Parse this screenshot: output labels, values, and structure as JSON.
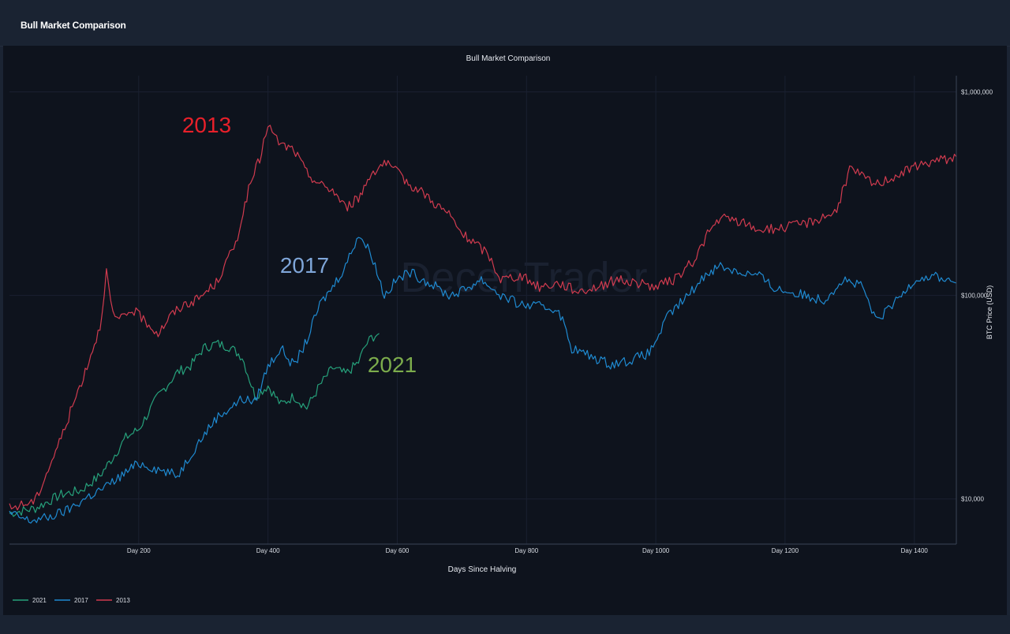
{
  "panel": {
    "title": "Bull Market Comparison"
  },
  "watermark": "DecenTrader",
  "colors": {
    "s2021": "#26a17b",
    "s2017": "#1f8ad1",
    "s2013": "#d13b4f",
    "annot2013": "#e8202a",
    "annot2017": "#7fa6d9",
    "annot2021": "#7cac4c"
  },
  "chart_data": {
    "type": "line",
    "title": "Bull Market Comparison",
    "xlabel": "Days Since Halving",
    "ylabel": "BTC Price (USD)",
    "yscale": "log",
    "xlim": [
      0,
      1465
    ],
    "ylim": [
      6000,
      1200000
    ],
    "x_ticks": [
      200,
      400,
      600,
      800,
      1000,
      1200,
      1400
    ],
    "x_tick_labels": [
      "Day 200",
      "Day 400",
      "Day 600",
      "Day 800",
      "Day 1000",
      "Day 1200",
      "Day 1400"
    ],
    "y_ticks": [
      10000,
      100000,
      1000000
    ],
    "y_tick_labels": [
      "$10,000",
      "$100,000",
      "$1,000,000"
    ],
    "legend_position": "bottom-left",
    "annotations": [
      {
        "text": "2013",
        "series": "2013"
      },
      {
        "text": "2017",
        "series": "2017"
      },
      {
        "text": "2021",
        "series": "2021"
      }
    ],
    "series": [
      {
        "name": "2021",
        "color": "#26a17b",
        "points": [
          [
            0,
            8500
          ],
          [
            40,
            9000
          ],
          [
            80,
            10500
          ],
          [
            110,
            11000
          ],
          [
            140,
            13000
          ],
          [
            160,
            16000
          ],
          [
            180,
            20000
          ],
          [
            200,
            22000
          ],
          [
            230,
            32000
          ],
          [
            260,
            42000
          ],
          [
            280,
            45000
          ],
          [
            300,
            55000
          ],
          [
            320,
            58000
          ],
          [
            340,
            56000
          ],
          [
            360,
            50000
          ],
          [
            380,
            32000
          ],
          [
            400,
            36000
          ],
          [
            420,
            29000
          ],
          [
            440,
            32000
          ],
          [
            460,
            28000
          ],
          [
            480,
            36000
          ],
          [
            500,
            44000
          ],
          [
            520,
            41000
          ],
          [
            540,
            47000
          ],
          [
            550,
            56000
          ],
          [
            560,
            62000
          ],
          [
            572,
            65000
          ]
        ]
      },
      {
        "name": "2017",
        "color": "#1f8ad1",
        "points": [
          [
            0,
            8500
          ],
          [
            30,
            7800
          ],
          [
            60,
            8100
          ],
          [
            90,
            8800
          ],
          [
            120,
            10200
          ],
          [
            150,
            11500
          ],
          [
            180,
            13500
          ],
          [
            200,
            15000
          ],
          [
            230,
            14000
          ],
          [
            260,
            13000
          ],
          [
            290,
            18500
          ],
          [
            320,
            25000
          ],
          [
            360,
            31000
          ],
          [
            380,
            30000
          ],
          [
            400,
            45000
          ],
          [
            420,
            55000
          ],
          [
            440,
            45000
          ],
          [
            460,
            60000
          ],
          [
            480,
            90000
          ],
          [
            500,
            110000
          ],
          [
            520,
            140000
          ],
          [
            540,
            200000
          ],
          [
            560,
            160000
          ],
          [
            580,
            100000
          ],
          [
            600,
            120000
          ],
          [
            620,
            130000
          ],
          [
            650,
            115000
          ],
          [
            680,
            100000
          ],
          [
            700,
            105000
          ],
          [
            730,
            120000
          ],
          [
            760,
            100000
          ],
          [
            790,
            90000
          ],
          [
            820,
            88000
          ],
          [
            850,
            85000
          ],
          [
            870,
            55000
          ],
          [
            900,
            50000
          ],
          [
            930,
            46000
          ],
          [
            960,
            48000
          ],
          [
            990,
            52000
          ],
          [
            1020,
            80000
          ],
          [
            1050,
            100000
          ],
          [
            1080,
            130000
          ],
          [
            1100,
            140000
          ],
          [
            1130,
            130000
          ],
          [
            1160,
            125000
          ],
          [
            1180,
            110000
          ],
          [
            1200,
            105000
          ],
          [
            1230,
            100000
          ],
          [
            1260,
            95000
          ],
          [
            1290,
            120000
          ],
          [
            1320,
            110000
          ],
          [
            1340,
            75000
          ],
          [
            1360,
            85000
          ],
          [
            1380,
            100000
          ],
          [
            1400,
            120000
          ],
          [
            1430,
            125000
          ],
          [
            1465,
            115000
          ]
        ]
      },
      {
        "name": "2013",
        "color": "#d13b4f",
        "points": [
          [
            0,
            9000
          ],
          [
            40,
            9800
          ],
          [
            60,
            14000
          ],
          [
            80,
            20000
          ],
          [
            100,
            30000
          ],
          [
            120,
            45000
          ],
          [
            140,
            70000
          ],
          [
            150,
            130000
          ],
          [
            160,
            80000
          ],
          [
            170,
            75000
          ],
          [
            190,
            85000
          ],
          [
            210,
            75000
          ],
          [
            230,
            65000
          ],
          [
            250,
            80000
          ],
          [
            270,
            90000
          ],
          [
            290,
            95000
          ],
          [
            320,
            115000
          ],
          [
            350,
            180000
          ],
          [
            370,
            330000
          ],
          [
            390,
            500000
          ],
          [
            400,
            700000
          ],
          [
            410,
            600000
          ],
          [
            420,
            550000
          ],
          [
            440,
            520000
          ],
          [
            460,
            400000
          ],
          [
            480,
            350000
          ],
          [
            500,
            330000
          ],
          [
            520,
            270000
          ],
          [
            540,
            300000
          ],
          [
            560,
            400000
          ],
          [
            580,
            450000
          ],
          [
            600,
            400000
          ],
          [
            620,
            350000
          ],
          [
            640,
            320000
          ],
          [
            660,
            280000
          ],
          [
            680,
            250000
          ],
          [
            700,
            200000
          ],
          [
            720,
            180000
          ],
          [
            740,
            160000
          ],
          [
            760,
            120000
          ],
          [
            790,
            125000
          ],
          [
            820,
            110000
          ],
          [
            850,
            115000
          ],
          [
            880,
            105000
          ],
          [
            910,
            110000
          ],
          [
            940,
            120000
          ],
          [
            970,
            115000
          ],
          [
            1000,
            110000
          ],
          [
            1030,
            120000
          ],
          [
            1060,
            150000
          ],
          [
            1080,
            200000
          ],
          [
            1100,
            240000
          ],
          [
            1130,
            230000
          ],
          [
            1160,
            210000
          ],
          [
            1200,
            215000
          ],
          [
            1240,
            230000
          ],
          [
            1280,
            260000
          ],
          [
            1300,
            420000
          ],
          [
            1340,
            350000
          ],
          [
            1380,
            400000
          ],
          [
            1420,
            450000
          ],
          [
            1465,
            480000
          ]
        ]
      }
    ]
  }
}
